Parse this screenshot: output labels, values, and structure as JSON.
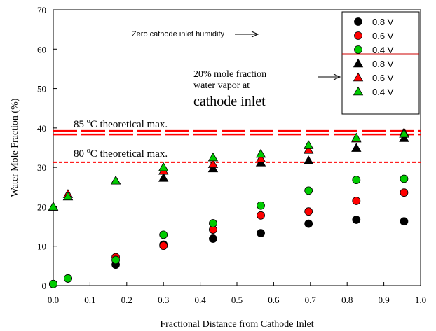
{
  "chart_data": {
    "type": "scatter",
    "xlabel": "Fractional Distance from Cathode Inlet",
    "ylabel": "Water Mole Fraction (%)",
    "xlim": [
      0.0,
      1.0
    ],
    "ylim": [
      0,
      70
    ],
    "x_ticks": [
      "0.0",
      "0.1",
      "0.2",
      "0.3",
      "0.4",
      "0.5",
      "0.6",
      "0.7",
      "0.8",
      "0.9",
      "1.0"
    ],
    "y_ticks": [
      "0",
      "10",
      "20",
      "30",
      "40",
      "50",
      "60",
      "70"
    ],
    "legend_position": "top-right",
    "reference_lines": [
      {
        "label": "85 oC theoretical max.",
        "label_main_before": "85 ",
        "label_sup": "o",
        "label_main_after": "C theoretical max.",
        "y": 38.8,
        "style": "double-dashed",
        "color": "#ff0000"
      },
      {
        "label": "80 oC theoretical max.",
        "label_main_before": "80 ",
        "label_sup": "o",
        "label_main_after": "C theoretical max.",
        "y": 31.3,
        "style": "dashed",
        "color": "#ff0000"
      }
    ],
    "annotations": [
      {
        "text": "Zero cathode inlet humidity"
      },
      {
        "lines": [
          "20% mole fraction",
          "water vapor at"
        ],
        "emphasis": "cathode inlet"
      }
    ],
    "series": [
      {
        "name": "0.8 V",
        "marker": "circle",
        "color": "#000000",
        "x": [
          0.0,
          0.04,
          0.17,
          0.3,
          0.435,
          0.565,
          0.695,
          0.825,
          0.955
        ],
        "y": [
          0.4,
          1.8,
          5.3,
          10.4,
          11.9,
          13.3,
          15.7,
          16.7,
          16.3
        ]
      },
      {
        "name": "0.6 V",
        "marker": "circle",
        "color": "#ff0000",
        "x": [
          0.0,
          0.04,
          0.17,
          0.3,
          0.435,
          0.565,
          0.695,
          0.825,
          0.955
        ],
        "y": [
          0.4,
          1.8,
          7.2,
          10.1,
          14.2,
          17.8,
          18.8,
          21.5,
          23.6
        ]
      },
      {
        "name": "0.4 V",
        "marker": "circle",
        "color": "#00cc00",
        "x": [
          0.0,
          0.04,
          0.17,
          0.3,
          0.435,
          0.565,
          0.695,
          0.825,
          0.955
        ],
        "y": [
          0.4,
          1.8,
          6.5,
          12.9,
          15.8,
          20.3,
          24.1,
          26.8,
          27.1
        ]
      },
      {
        "name": "0.8 V",
        "marker": "triangle",
        "color": "#000000",
        "x": [
          0.0,
          0.04,
          0.17,
          0.3,
          0.435,
          0.565,
          0.695,
          0.825,
          0.955
        ],
        "y": [
          20.0,
          22.6,
          26.6,
          27.3,
          29.7,
          31.2,
          31.7,
          34.9,
          37.4
        ]
      },
      {
        "name": "0.6 V",
        "marker": "triangle",
        "color": "#ff0000",
        "x": [
          0.0,
          0.04,
          0.17,
          0.3,
          0.435,
          0.565,
          0.695,
          0.825,
          0.955
        ],
        "y": [
          20.0,
          23.2,
          26.6,
          29.1,
          30.8,
          32.2,
          34.4,
          37.3,
          38.8
        ]
      },
      {
        "name": "0.4 V",
        "marker": "triangle",
        "color": "#00cc00",
        "x": [
          0.0,
          0.04,
          0.17,
          0.3,
          0.435,
          0.565,
          0.695,
          0.825,
          0.955
        ],
        "y": [
          20.0,
          22.6,
          26.6,
          30.0,
          32.5,
          33.4,
          35.6,
          37.5,
          38.5
        ]
      }
    ]
  }
}
